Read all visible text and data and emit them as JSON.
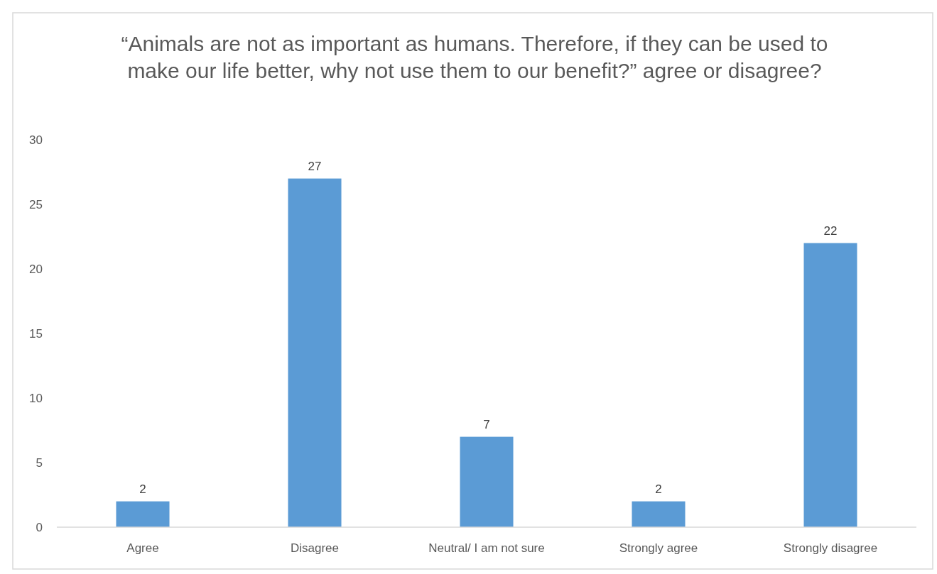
{
  "chart_data": {
    "type": "bar",
    "title": "“Animals are not as important as humans. Therefore, if they can be used to make our life better, why not use them to our benefit?” agree or disagree?",
    "categories": [
      "Agree",
      "Disagree",
      "Neutral/ I am not sure",
      "Strongly agree",
      "Strongly disagree"
    ],
    "values": [
      2,
      27,
      7,
      2,
      22
    ],
    "color": "#5b9bd5",
    "ylim": [
      0,
      30
    ],
    "yticks": [
      0,
      5,
      10,
      15,
      20,
      25,
      30
    ],
    "grid": false,
    "data_labels": true
  }
}
